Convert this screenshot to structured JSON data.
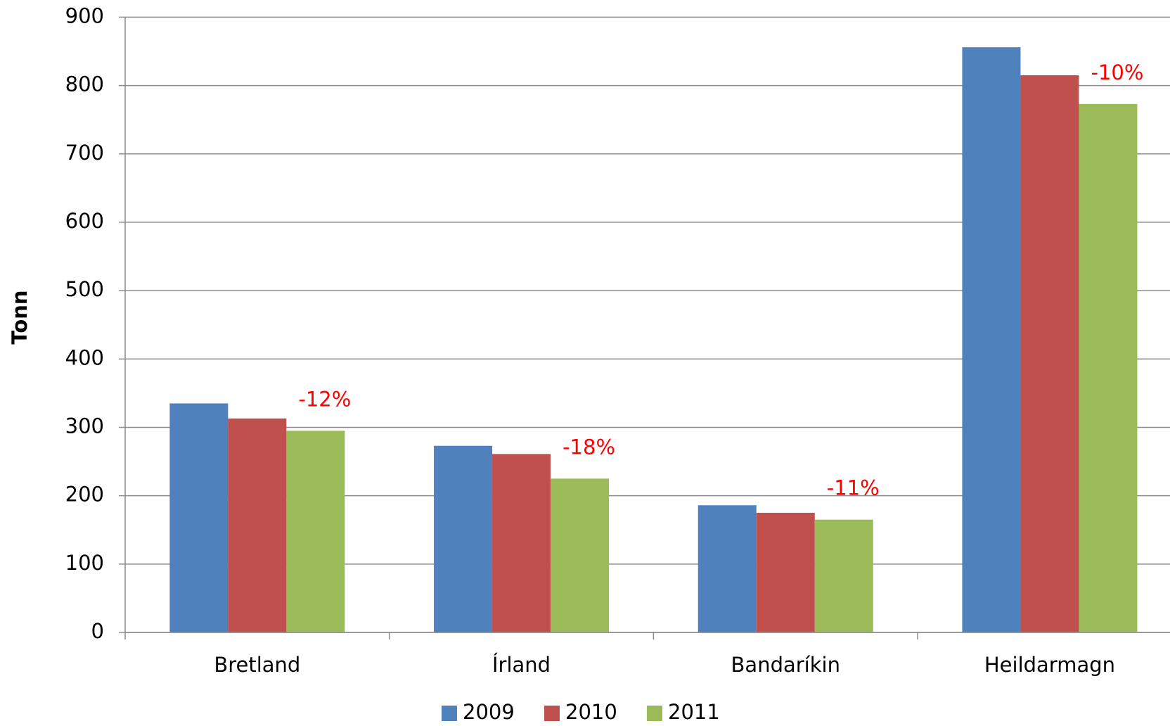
{
  "chart_data": {
    "type": "bar",
    "y_axis_label": "Tonn",
    "categories": [
      "Bretland",
      "Írland",
      "Bandaríkin",
      "Heildarmagn"
    ],
    "series": [
      {
        "name": "2009",
        "color": "#4f81bd",
        "values": [
          335,
          273,
          186,
          856
        ]
      },
      {
        "name": "2010",
        "color": "#c0504d",
        "values": [
          313,
          261,
          175,
          815
        ]
      },
      {
        "name": "2011",
        "color": "#9bbb59",
        "values": [
          295,
          225,
          165,
          773
        ]
      }
    ],
    "annotations": [
      "-12%",
      "-18%",
      "-11%",
      "-10%"
    ],
    "annotation_color": "#ff0000",
    "ylim": [
      0,
      900
    ],
    "yticks": [
      0,
      100,
      200,
      300,
      400,
      500,
      600,
      700,
      800,
      900
    ],
    "grid": true,
    "legend": "bottom"
  }
}
